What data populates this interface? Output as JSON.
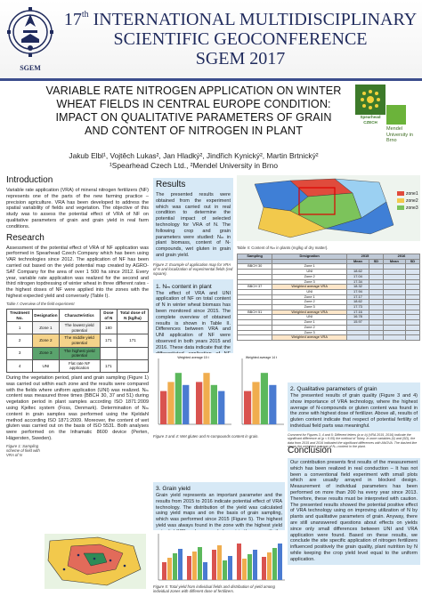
{
  "header": {
    "edition": "17",
    "edition_sup": "th",
    "line1": "INTERNATIONAL MULTIDISCIPLINARY",
    "line2": "SCIENTIFIC GEOCONFERENCE",
    "line3": "SGEM 2017",
    "logo_text": "SGEM"
  },
  "title": {
    "line1": "VARIABLE RATE NITROGEN APPLICATION ON WINTER",
    "line2": "WHEAT FIELDS IN CENTRAL EUROPE CONDITION:",
    "line3": "IMPACT ON QUALITATIVE PARAMETERS OF GRAIN",
    "line4": "AND CONTENT OF NITROGEN IN PLANT"
  },
  "authors": {
    "names": "Jakub Elbl¹, Vojtěch Lukas², Jan Hladký², Jindřich Kynický², Martin Brtnický²",
    "affiliations": "¹Spearhead Czech Ltd., ²Mendel University in Brno"
  },
  "logos": {
    "spearhead": "Spearhead CZECH",
    "mendel": "Mendel University in Brno"
  },
  "intro": {
    "heading": "Introduction",
    "text": "Variable rate application (VRA) of mineral nitrogen fertilizers (NF) represents one of the parts of the new farming practice – precision agriculture. VRA has been developed to address the spatial variability of fields and vegetation. The objective of this study was to assess the potential effect of VRA of NF on qualitative parameters of grain and grain yield in real farm conditions."
  },
  "research": {
    "heading": "Research",
    "text": "Assessment of the potential effect of VRA of NF application was performed in Spearhead Czech Company which has been using VAR technologies since 2012. The application of NF has been carried out based on the yield potential map created by AGRO-SAT Company for the area of over 1 500 ha since 2012. Every year, variable rate application was realized for the second and third nitrogen topdressing of winter wheat in three different rates - the highest doses of NF were applied into the zones with the highest expected yield and conversely (Table I).",
    "table_caption": "Table I: Overview of the field experiment",
    "table_headers": [
      "Treatment No.",
      "Designation",
      "Characteristics",
      "Dose of N",
      "Total dose of N (kg/ha)"
    ],
    "table_rows": [
      [
        "1",
        "Zone 1",
        "The lowest yield potential",
        "180",
        ""
      ],
      [
        "2",
        "Zone 2",
        "The middle yield potential",
        "171",
        "171"
      ],
      [
        "3",
        "Zone 3",
        "The highest yield potential",
        "",
        ""
      ],
      [
        "4",
        "UNI",
        "Flat rate NF application",
        "171",
        ""
      ]
    ],
    "text2": "During the vegetation period, plant and grain sampling (Figure 1) was carried out within each zone and the results were compared with the fields where uniform application (UNI) was realized. Nₘ content was measured three times (BBCH 30, 37 and 51) during vegetation period in plant samples according ISO 1871:2009 using Kjeltec system (Foss, Denmark). Determination of Nₘ content in grain samples was performed using the Kjeldahl method according ISO 1871:2009. Moreover, the content of wet gluten was carried out on the basis of ISO 5531. Both analyses were performed on the Inframatic 8600 device (Perten, Hägersten, Sweden).",
    "fig1_caption": "Figure 1: Sampling scheme of field with VRA of N"
  },
  "results": {
    "heading": "Results",
    "text": "The presented results were obtained from the experiment which was carried out in real condition to determine the potential impact of selected technology for VRA of N. The following crop and grain parameters were studied: Nₘ in plant biomass, content of N-compounds, wet gluten in grain and grain yield.",
    "fig2_caption": "Figure 2: Example of application map for VRA of N and localization of experimental fields (red square).",
    "sub1": "1. Nₘ content in plant",
    "sub1_text": "The effect of VRA and UNI application of NF on total content of N in winter wheat biomass has been monitored since 2015. The complete overview of obtained results is shown in Table II. Differences between VRA and UNI application of NF were observed in both years 2015 and 2016. These data indicate that the differentiated application of NF had impact on utilization of N by plants.",
    "fig3_caption": "Figure 3 and 4: Wet gluten and N-compounds content in grain.",
    "sub3": "3. Grain yield",
    "sub3_text": "Grain yield represents an important parameter and the results from 2015 to 2016 indicate potential effect of VRA technology. The distribution of the yield was calculated using yield maps and on the basis of grain sampling, which was performed since 2015 (Figure 5). The highest yield was always found in the zone with the highest yield potential (YP) and conversely lowest in the zone with the lowest YP.",
    "fig5_caption": "Figure 5: Total yield from individual fields and distribution of yield among individual zones with different dose of fertilizers.",
    "chart_series": [
      "Zone 1",
      "Zone 2",
      "Zone 3",
      "UNI"
    ],
    "chart_label_1": "Weighted average 15 t",
    "chart_label_2": "Weighted average 14 t"
  },
  "table2": {
    "caption": "Table II: Content of Nₘ in plants (mg/kg of dry matter).",
    "headers": [
      "Sampling",
      "Designation",
      "2015",
      "",
      "2016",
      ""
    ],
    "subheaders": [
      "",
      "",
      "Mean",
      "SD",
      "Mean",
      "SD"
    ],
    "rows": [
      [
        "BBCH 30",
        "Zone 1",
        "",
        "",
        "",
        ""
      ],
      [
        "",
        "UNI",
        "18.62",
        "",
        "",
        ""
      ],
      [
        "",
        "Zone 2",
        "17.04",
        "",
        "",
        ""
      ],
      [
        "",
        "Zone 3",
        "17.34",
        "",
        "",
        ""
      ],
      [
        "BBCH 37",
        "Weighted average VRA",
        "18.32",
        "",
        "",
        ""
      ],
      [
        "",
        "UNI",
        "17.94",
        "",
        "",
        ""
      ],
      [
        "",
        "Zone 1",
        "17.17",
        "",
        "",
        ""
      ],
      [
        "",
        "Zone 2",
        "18.62",
        "",
        "",
        ""
      ],
      [
        "",
        "Zone 3",
        "17.73",
        "",
        "",
        ""
      ],
      [
        "BBCH 51",
        "Weighted average VRA",
        "17.16",
        "",
        "",
        ""
      ],
      [
        "",
        "UNI",
        "16.78",
        "",
        "",
        ""
      ],
      [
        "",
        "Zone 1",
        "15.97",
        "",
        "",
        ""
      ],
      [
        "",
        "Zone 2",
        "",
        "",
        "",
        ""
      ],
      [
        "",
        "Zone 3",
        "",
        "",
        "",
        ""
      ],
      [
        "",
        "Weighted average VRA",
        "",
        "",
        "",
        ""
      ]
    ]
  },
  "quality": {
    "sub2": "2. Qualitative parameters of grain",
    "text": "The presented results of grain quality (Figure 3 and 4) show importance of VRA technology, where the highest average of N-compounds or gluten content was found in the zone with highest dose of fertilizer. Above all, results of gluten content indicate that respect of potential fertility of individual field parts was meaningful.",
    "note": "Comment for Figures 3, 4 and 5: Different letters (a or b) (VRA 2015, 2016) indicate the significant difference at (p < 0.05) the method of Tukey. In zone variables (x̄) and (SD), the data from 2015 and 2016 indicated the significant differences with ANOVA. The dashed line shows the weighted average of Nₘ content in the plant."
  },
  "conclusion": {
    "heading": "Conclusion",
    "text": "Our contribution presents first results of the measurement which has been realized in real conduction – It has not been a conventional field experiment with small plots which are usually arrayed in blocked design. Measurement of individual parameters has been performed on more than 200 ha every year since 2013. Therefore, these results must be interpreted with caution. The presented results showed the potential positive effect of VRA technology using on improving utilization of N by plants and qualitative parameters of grain. Anyway, there are still unanswered questions about effects on yields since only small differences between UNI and VRA application were found. Based on these results, we conclude the site specific application of nitrogen fertilizers influenced positively the grain quality, plant nutrition by N while keeping the crop yield level equal to the uniform application."
  },
  "colors": {
    "header_blue": "#1f2a5c",
    "box_blue": "#d7e9f6",
    "zone1": "#d9534f",
    "zone2": "#f0ad4e",
    "zone3": "#5cb85c",
    "uni": "#4a7bd1"
  }
}
